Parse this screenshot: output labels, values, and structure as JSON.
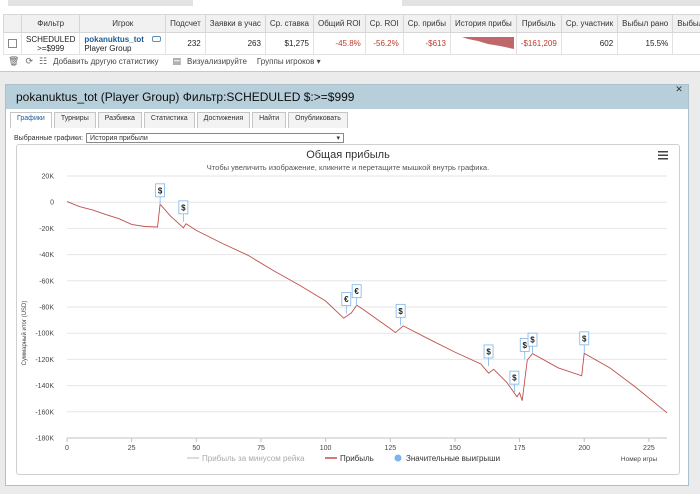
{
  "stats_table": {
    "headers": [
      "",
      "Фильтр",
      "Игрок",
      "Подсчет",
      "Заявки в учас",
      "Ср. ставка",
      "Общий ROI",
      "Ср. ROI",
      "Ср. прибы",
      "История прибы",
      "Прибыль",
      "Ср. участник",
      "Выбыл рано",
      "Выбыл"
    ],
    "row": {
      "filter_line1": "SCHEDULED",
      "filter_line2": ">=$999",
      "player_name": "pokanuktus_tot",
      "player_group": "Player Group",
      "count": "232",
      "entries": "263",
      "avg_stake": "$1,275",
      "total_roi": "-45.8%",
      "avg_roi": "-56.2%",
      "avg_profit": "-$613",
      "profit": "-$161,209",
      "avg_entrants": "602",
      "early_bust": "15.5%"
    }
  },
  "toolbar": {
    "add_stat": "Добавить другую статистику",
    "visualize": "Визуализируйте",
    "player_groups": "Группы игроков"
  },
  "panel": {
    "title": "pokanuktus_tot (Player Group) Фильтр:SCHEDULED $:>=$999",
    "tabs": [
      "Графики",
      "Турниры",
      "Разбивка",
      "Статистика",
      "Достижения",
      "Найти",
      "Опубликовать"
    ],
    "selected_charts_label": "Выбранные графики:",
    "selected_chart": "История прибыли"
  },
  "chart_data": {
    "type": "line",
    "title": "Общая прибыль",
    "subtitle": "Чтобы увеличить изображение, кликните и перетащите мышкой внутрь графика.",
    "ylabel": "Суммарный итог (USD)",
    "xlabel": "Номер игры",
    "xlim": [
      0,
      232
    ],
    "ylim": [
      -180000,
      20000
    ],
    "x_ticks": [
      "0",
      "25",
      "50",
      "75",
      "100",
      "125",
      "150",
      "175",
      "200",
      "225"
    ],
    "y_ticks": [
      "20K",
      "0",
      "-20K",
      "-40K",
      "-60K",
      "-80K",
      "-100K",
      "-120K",
      "-140K",
      "-160K",
      "-180K"
    ],
    "legend": [
      "Прибыль за минусом рейка",
      "Прибыль",
      "Значительные выигрыши"
    ],
    "series": [
      {
        "name": "Прибыль",
        "x": [
          0,
          5,
          10,
          15,
          20,
          25,
          30,
          35,
          36,
          40,
          45,
          46,
          50,
          60,
          70,
          80,
          90,
          100,
          107,
          110,
          112,
          115,
          120,
          125,
          127,
          130,
          140,
          150,
          160,
          163,
          165,
          170,
          174,
          175,
          176,
          178,
          180,
          190,
          199,
          200,
          210,
          220,
          232
        ],
        "y": [
          0,
          -3000,
          -6500,
          -9000,
          -13000,
          -16500,
          -19000,
          -18500,
          -2000,
          -10000,
          -20000,
          -16000,
          -22000,
          -31000,
          -41000,
          -52000,
          -64000,
          -75000,
          -89000,
          -84000,
          -79000,
          -82000,
          -90000,
          -96000,
          -100000,
          -94000,
          -105000,
          -114000,
          -124000,
          -130000,
          -128000,
          -137000,
          -149000,
          -145000,
          -152000,
          -120000,
          -116000,
          -126000,
          -133000,
          -115000,
          -127000,
          -141000,
          -161209
        ]
      }
    ],
    "wins": [
      {
        "x": 36,
        "y": -2000,
        "symbol": "$"
      },
      {
        "x": 45,
        "y": -15000,
        "symbol": "$"
      },
      {
        "x": 108,
        "y": -85000,
        "symbol": "€"
      },
      {
        "x": 112,
        "y": -79000,
        "symbol": "€"
      },
      {
        "x": 129,
        "y": -94000,
        "symbol": "$"
      },
      {
        "x": 163,
        "y": -125000,
        "symbol": "$"
      },
      {
        "x": 173,
        "y": -145000,
        "symbol": "$"
      },
      {
        "x": 177,
        "y": -120000,
        "symbol": "$"
      },
      {
        "x": 180,
        "y": -116000,
        "symbol": "$"
      },
      {
        "x": 200,
        "y": -115000,
        "symbol": "$"
      }
    ]
  }
}
